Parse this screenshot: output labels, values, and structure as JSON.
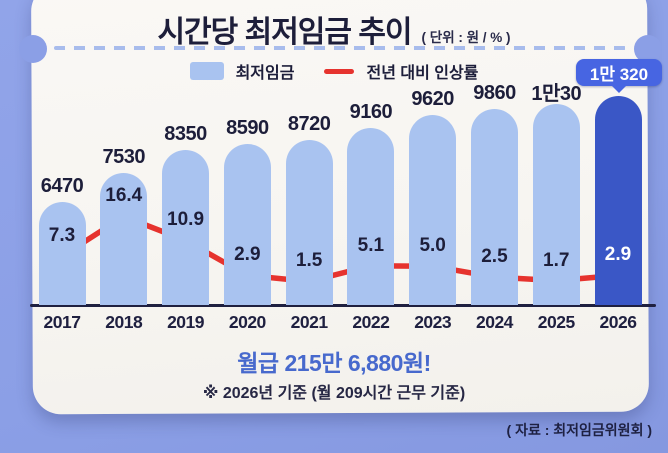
{
  "page": {
    "title": "시간당 최저임금 추이",
    "unit_label": "( 단위 : 원 / % )",
    "monthly_wage": "월급 215만 6,880원!",
    "wage_note": "※ 2026년 기준 (월 209시간 근무 기준)",
    "source": "( 자료 : 최저임금위원회 )"
  },
  "legend": {
    "bar_label": "최저임금",
    "line_label": "전년 대비 인상률"
  },
  "badge": {
    "label": "1만 320"
  },
  "colors": {
    "background": "#8b9fe6",
    "paper": "#f8f6f2",
    "bar": "#a9c3f0",
    "bar_highlight": "#3a57c6",
    "badge": "#4765e2",
    "line": "#e6332e",
    "text_dark": "#20213c",
    "text_blue": "#4769cd"
  },
  "chart_data": {
    "type": "bar",
    "title": "시간당 최저임금 추이",
    "unit": "원 / %",
    "legend_position": "top",
    "grid": false,
    "categories": [
      "2017",
      "2018",
      "2019",
      "2020",
      "2021",
      "2022",
      "2023",
      "2024",
      "2025",
      "2026"
    ],
    "series": [
      {
        "name": "최저임금",
        "type": "bar",
        "values": [
          6470,
          7530,
          8350,
          8590,
          8720,
          9160,
          9620,
          9860,
          10030,
          10320
        ],
        "value_labels": [
          "6470",
          "7530",
          "8350",
          "8590",
          "8720",
          "9160",
          "9620",
          "9860",
          "1만30",
          "1만 320"
        ],
        "highlight_index": 9
      },
      {
        "name": "전년 대비 인상률",
        "type": "line",
        "values": [
          7.3,
          16.4,
          10.9,
          2.9,
          1.5,
          5.1,
          5.0,
          2.5,
          1.7,
          2.9
        ],
        "value_labels": [
          "7.3",
          "16.4",
          "10.9",
          "2.9",
          "1.5",
          "5.1",
          "5.0",
          "2.5",
          "1.7",
          "2.9"
        ]
      }
    ],
    "ylim_bar": [
      0,
      10320
    ],
    "ylim_line": [
      0,
      16.4
    ]
  }
}
